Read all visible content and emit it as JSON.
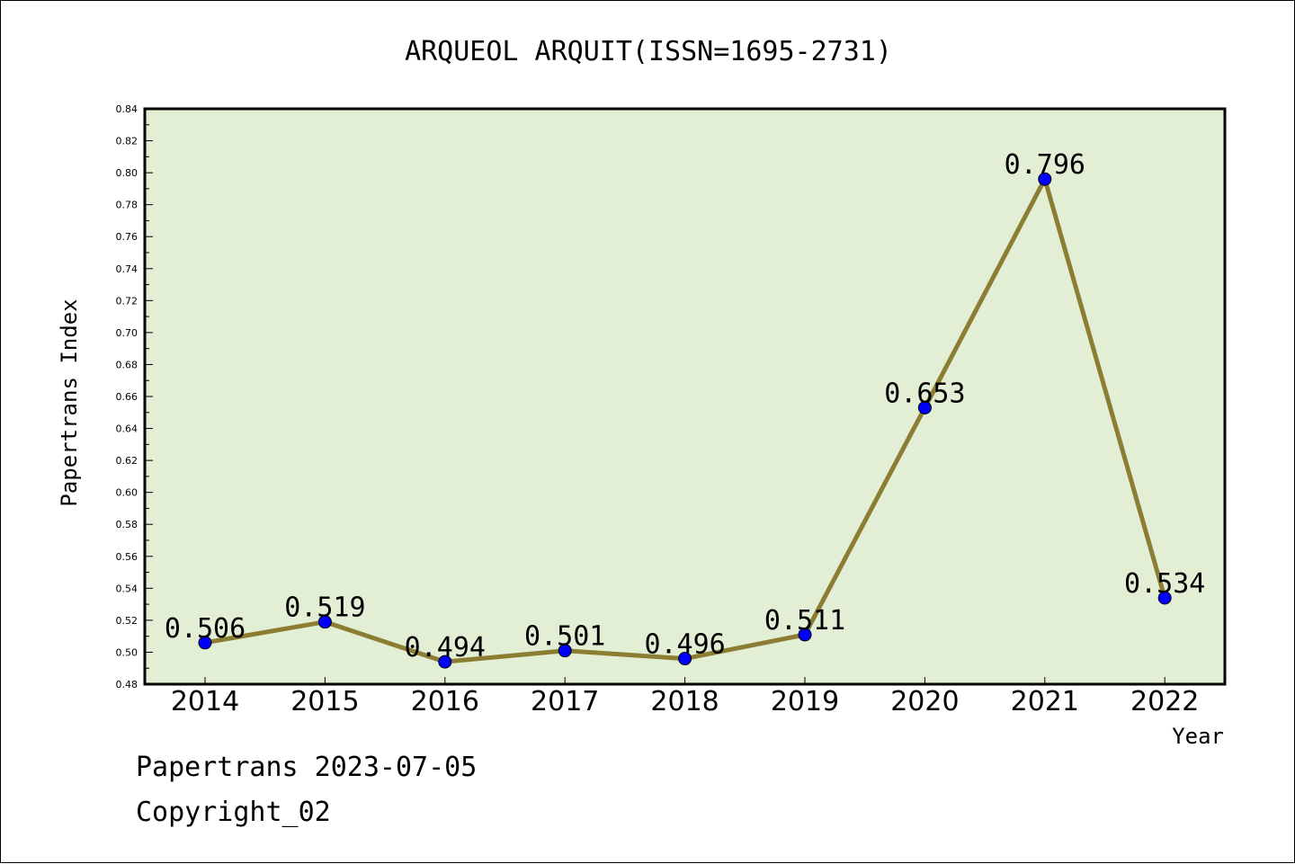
{
  "chart_data": {
    "type": "line",
    "title": "ARQUEOL ARQUIT(ISSN=1695-2731)",
    "xlabel": "Year",
    "ylabel": "Papertrans Index",
    "categories": [
      "2014",
      "2015",
      "2016",
      "2017",
      "2018",
      "2019",
      "2020",
      "2021",
      "2022"
    ],
    "series": [
      {
        "values": [
          0.506,
          0.519,
          0.494,
          0.501,
          0.496,
          0.511,
          0.653,
          0.796,
          0.534
        ],
        "data_labels": [
          "0.506",
          "0.519",
          "0.494",
          "0.501",
          "0.496",
          "0.511",
          "0.653",
          "0.796",
          "0.534"
        ]
      }
    ],
    "ylim": [
      0.48,
      0.84
    ],
    "yticks": [
      "0.48",
      "0.50",
      "0.52",
      "0.54",
      "0.56",
      "0.58",
      "0.60",
      "0.62",
      "0.64",
      "0.66",
      "0.68",
      "0.70",
      "0.72",
      "0.74",
      "0.76",
      "0.78",
      "0.80",
      "0.82",
      "0.84"
    ],
    "grid": false,
    "colors": {
      "plot_background": "#e2efd5",
      "line": "#8b7e33",
      "marker": "#0000ff"
    }
  },
  "footer": {
    "line1": "Papertrans 2023-07-05",
    "line2": "Copyright_02"
  }
}
